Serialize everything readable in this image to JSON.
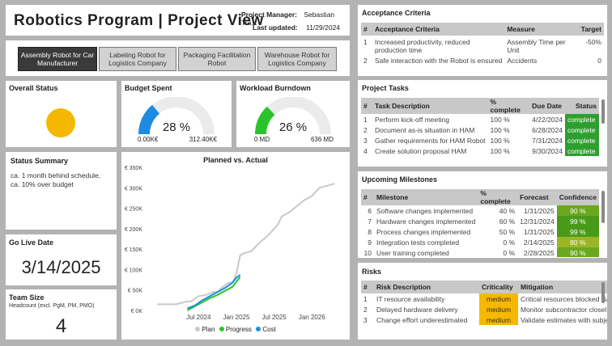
{
  "header": {
    "title": "Robotics Program | Project View",
    "pm_label": "Project Manager:",
    "pm_value": "Sebastian Tra...",
    "updated_label": "Last updated:",
    "updated_value": "11/29/2024"
  },
  "tabs": [
    {
      "label": "Assembly Robot for Car Manufacturer",
      "active": true
    },
    {
      "label": "Labeling Robot for Logistics Company",
      "active": false
    },
    {
      "label": "Packaging Facilitation Robot",
      "active": false
    },
    {
      "label": "Warehouse Robot for Logistics Company",
      "active": false
    }
  ],
  "overall_status": {
    "title": "Overall Status",
    "color": "#f5b800"
  },
  "budget": {
    "title": "Budget Spent",
    "value": "28 %",
    "min": "0.00K€",
    "max": "312.40K€",
    "fraction": 0.28,
    "color": "#1f8be0"
  },
  "workload": {
    "title": "Workload Burndown",
    "value": "26 %",
    "min": "0 MD",
    "max": "636 MD",
    "fraction": 0.26,
    "color": "#29c429"
  },
  "status_summary": {
    "title": "Status Summary",
    "text": "ca. 1 month behind schedule, ca. 10% over budget"
  },
  "go_live": {
    "title": "Go Live Date",
    "value": "3/14/2025"
  },
  "team": {
    "title": "Team Size",
    "subtitle": "Headcount (excl. PgM, PM, PMO)",
    "value": "4"
  },
  "chart_data": {
    "type": "line",
    "title": "Planned vs. Actual",
    "y_ticks": [
      "€ 0K",
      "€ 50K",
      "€ 100K",
      "€ 150K",
      "€ 200K",
      "€ 250K",
      "€ 300K",
      "€ 350K"
    ],
    "ylim": [
      0,
      350
    ],
    "x_ticks": [
      "Jul 2024",
      "Jan 2025",
      "Jul 2025",
      "Jan 2026"
    ],
    "x_tick_pos": [
      2024.5,
      2025.0,
      2025.5,
      2026.0
    ],
    "xlim": [
      2023.8,
      2026.35
    ],
    "legend": [
      "Plan",
      "Progress",
      "Cost"
    ],
    "series": [
      {
        "name": "Plan",
        "color": "#c8c8c8",
        "x": [
          2023.95,
          2024.2,
          2024.35,
          2024.4,
          2024.5,
          2024.6,
          2024.7,
          2024.75,
          2024.8,
          2024.9,
          2024.95,
          2025.0,
          2025.05,
          2025.1,
          2025.2,
          2025.3,
          2025.4,
          2025.5,
          2025.55,
          2025.6,
          2025.7,
          2025.8,
          2025.9,
          2026.0,
          2026.1,
          2026.2,
          2026.3
        ],
        "values": [
          15,
          15,
          22,
          22,
          35,
          38,
          45,
          45,
          55,
          68,
          68,
          90,
          135,
          140,
          145,
          165,
          180,
          200,
          210,
          230,
          240,
          255,
          270,
          280,
          300,
          305,
          310
        ]
      },
      {
        "name": "Progress",
        "color": "#29c429",
        "x": [
          2024.35,
          2024.45,
          2024.55,
          2024.65,
          2024.75,
          2024.85,
          2024.95,
          2025.0,
          2025.05
        ],
        "values": [
          0,
          10,
          20,
          30,
          38,
          48,
          58,
          70,
          82
        ]
      },
      {
        "name": "Cost",
        "color": "#1f8be0",
        "x": [
          2024.35,
          2024.45,
          2024.55,
          2024.65,
          2024.75,
          2024.85,
          2024.95,
          2025.0,
          2025.05
        ],
        "values": [
          5,
          12,
          25,
          35,
          45,
          55,
          68,
          80,
          87
        ]
      }
    ]
  },
  "acceptance": {
    "title": "Acceptance Criteria",
    "columns": [
      "#",
      "Acceptance Criteria",
      "Measure",
      "Target"
    ],
    "rows": [
      [
        "1",
        "Increased productivity, reduced production time",
        "Assembly Time per Unit",
        "-50%"
      ],
      [
        "2",
        "Safe interaction with the Robot is ensured",
        "Accidents",
        "0"
      ]
    ]
  },
  "tasks": {
    "title": "Project Tasks",
    "columns": [
      "#",
      "Task Description",
      "% complete",
      "Due Date",
      "Status"
    ],
    "rows": [
      [
        "1",
        "Perform kick-off meeting",
        "100 %",
        "4/22/2024",
        "complete"
      ],
      [
        "2",
        "Document as-is situation in HAM",
        "100 %",
        "6/28/2024",
        "complete"
      ],
      [
        "3",
        "Gather requirements for HAM Robot",
        "100 %",
        "7/31/2024",
        "complete"
      ],
      [
        "4",
        "Create solution proposal HAM",
        "100 %",
        "9/30/2024",
        "complete"
      ]
    ]
  },
  "milestones": {
    "title": "Upcoming Milestones",
    "columns": [
      "#",
      "Milestone",
      "% complete",
      "Forecast",
      "Confidence"
    ],
    "rows": [
      [
        "6",
        "Software changes implemented",
        "40 %",
        "1/31/2025",
        "90 %"
      ],
      [
        "7",
        "Hardware changes implemented",
        "60 %",
        "12/31/2024",
        "99 %"
      ],
      [
        "8",
        "Process changes implemented",
        "50 %",
        "1/31/2025",
        "99 %"
      ],
      [
        "9",
        "Integration tests completed",
        "0 %",
        "2/14/2025",
        "80 %"
      ],
      [
        "10",
        "User training completed",
        "0 %",
        "2/28/2025",
        "90 %"
      ]
    ]
  },
  "risks": {
    "title": "Risks",
    "columns": [
      "#",
      "Risk Description",
      "Criticality",
      "Mitigation"
    ],
    "rows": [
      [
        "1",
        "IT resource availability",
        "medium",
        "Critical resources blocked via"
      ],
      [
        "2",
        "Delayed hardware delivery",
        "medium",
        "Monitor subcontractor closel"
      ],
      [
        "3",
        "Change effort underestimated",
        "medium",
        "Validate estimates with subje"
      ]
    ]
  }
}
